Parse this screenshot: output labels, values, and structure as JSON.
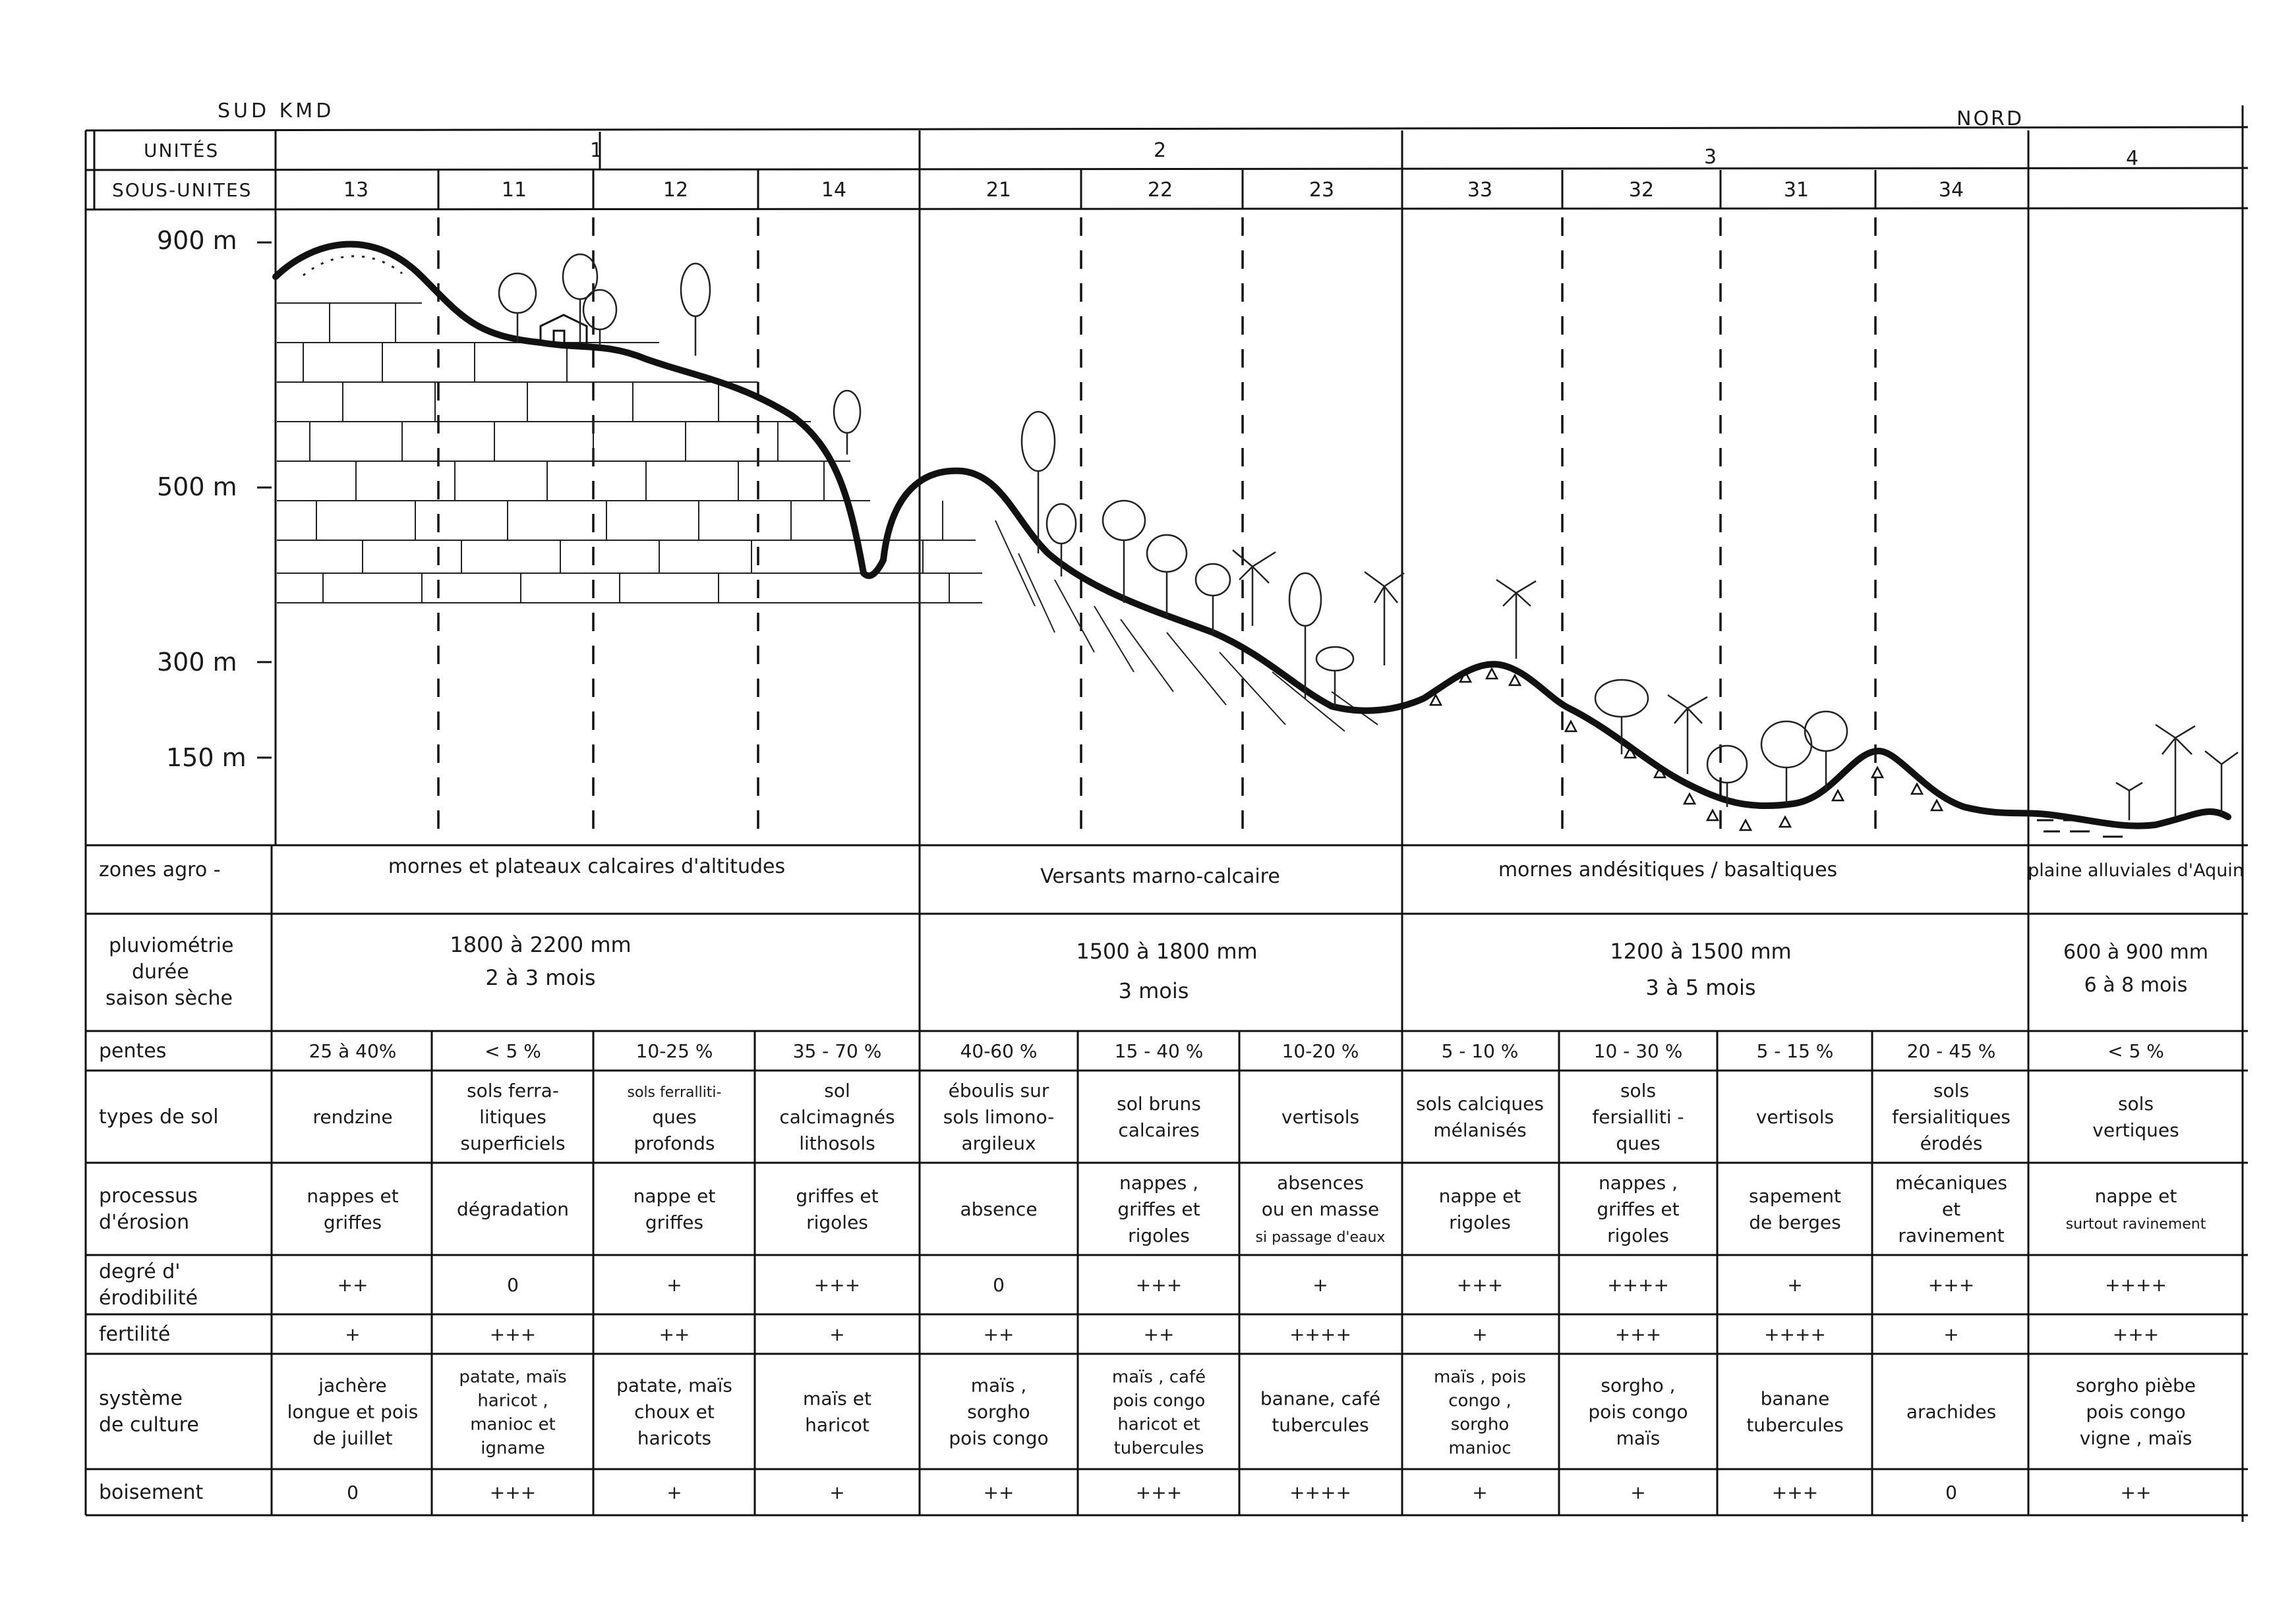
{
  "corners": {
    "left": "SUD KMD",
    "right": "NORD"
  },
  "header": {
    "unites_label": "UNITÉS",
    "sous_unites_label": "SOUS-UNITES",
    "unites": [
      "1",
      "2",
      "3",
      "4"
    ],
    "sous_unites": [
      "13",
      "11",
      "12",
      "14",
      "21",
      "22",
      "23",
      "33",
      "32",
      "31",
      "34"
    ]
  },
  "altitudes": [
    "900 m",
    "500 m",
    "300 m",
    "150 m"
  ],
  "zones": {
    "label": "zones agro -",
    "values": [
      "mornes et plateaux calcaires d'altitudes",
      "Versants marno-calcaire",
      "mornes andésitiques / basaltiques",
      "plaine alluviales d'Aquin"
    ]
  },
  "pluvio": {
    "label_lines": [
      "pluviométrie",
      "durée",
      "saison sèche"
    ],
    "values": [
      [
        "1800 à 2200 mm",
        "2 à 3 mois"
      ],
      [
        "1500 à 1800 mm",
        "3 mois"
      ],
      [
        "1200 à 1500 mm",
        "3 à 5 mois"
      ],
      [
        "600 à 900 mm",
        "6 à 8 mois"
      ]
    ]
  },
  "rows": [
    {
      "label": [
        "pentes"
      ],
      "cells": [
        [
          "25 à 40%"
        ],
        [
          "< 5 %"
        ],
        [
          "10-25 %"
        ],
        [
          "35 - 70 %"
        ],
        [
          "40-60 %"
        ],
        [
          "15 - 40 %"
        ],
        [
          "10-20 %"
        ],
        [
          "5 - 10 %"
        ],
        [
          "10 - 30 %"
        ],
        [
          "5 - 15 %"
        ],
        [
          "20 - 45 %"
        ],
        [
          "< 5 %"
        ]
      ]
    },
    {
      "label": [
        "types de sol"
      ],
      "cells": [
        [
          "rendzine"
        ],
        [
          "sols ferra-",
          "litiques",
          "superficiels"
        ],
        [
          "sols ferralliti-",
          "ques",
          "profonds"
        ],
        [
          "sol",
          "calcimagnés",
          "lithosols"
        ],
        [
          "éboulis sur",
          "sols limono-",
          "argileux"
        ],
        [
          "sol bruns",
          "calcaires"
        ],
        [
          "vertisols"
        ],
        [
          "sols calciques",
          "mélanisés"
        ],
        [
          "sols",
          "fersialliti -",
          "ques"
        ],
        [
          "vertisols"
        ],
        [
          "sols",
          "fersialitiques",
          "érodés"
        ],
        [
          "sols",
          "vertiques"
        ]
      ]
    },
    {
      "label": [
        "processus",
        "d'érosion"
      ],
      "cells": [
        [
          "nappes et",
          "griffes"
        ],
        [
          "dégradation"
        ],
        [
          "nappe et",
          "griffes"
        ],
        [
          "griffes et",
          "rigoles"
        ],
        [
          "absence"
        ],
        [
          "nappes ,",
          "griffes et",
          "rigoles"
        ],
        [
          "absences",
          "ou en masse",
          "si passage d'eaux"
        ],
        [
          "nappe et",
          "rigoles"
        ],
        [
          "nappes ,",
          "griffes et",
          "rigoles"
        ],
        [
          "sapement",
          "de berges"
        ],
        [
          "mécaniques",
          "et",
          "ravinement"
        ],
        [
          "nappe et",
          "surtout ravinement"
        ]
      ]
    },
    {
      "label": [
        "degré d'",
        "érodibilité"
      ],
      "cells": [
        [
          "++"
        ],
        [
          "0"
        ],
        [
          "+"
        ],
        [
          "+++"
        ],
        [
          "0"
        ],
        [
          "+++"
        ],
        [
          "+"
        ],
        [
          "+++"
        ],
        [
          "++++"
        ],
        [
          "+"
        ],
        [
          "+++"
        ],
        [
          "++++"
        ]
      ]
    },
    {
      "label": [
        "fertilité"
      ],
      "cells": [
        [
          "+"
        ],
        [
          "+++"
        ],
        [
          "++"
        ],
        [
          "+"
        ],
        [
          "++"
        ],
        [
          "++"
        ],
        [
          "++++"
        ],
        [
          "+"
        ],
        [
          "+++"
        ],
        [
          "++++"
        ],
        [
          "+"
        ],
        [
          "+++"
        ]
      ]
    },
    {
      "label": [
        "système",
        "de culture"
      ],
      "cells": [
        [
          "jachère",
          "longue et pois",
          "de juillet"
        ],
        [
          "patate, maïs",
          "haricot ,",
          "manioc et",
          "igname"
        ],
        [
          "patate, maïs",
          "choux et",
          "haricots"
        ],
        [
          "maïs et",
          "haricot"
        ],
        [
          "maïs ,",
          "sorgho",
          "pois congo"
        ],
        [
          "maïs , café",
          "pois congo",
          "haricot et",
          "tubercules"
        ],
        [
          "banane, café",
          "tubercules"
        ],
        [
          "maïs , pois",
          "congo ,",
          "sorgho",
          "manioc"
        ],
        [
          "sorgho ,",
          "pois congo",
          "maïs"
        ],
        [
          "banane",
          "tubercules"
        ],
        [
          "arachides"
        ],
        [
          "sorgho pièbe",
          "pois congo",
          "vigne , maïs"
        ]
      ]
    },
    {
      "label": [
        "boisement"
      ],
      "cells": [
        [
          "0"
        ],
        [
          "+++"
        ],
        [
          "+"
        ],
        [
          "+"
        ],
        [
          "++"
        ],
        [
          "+++"
        ],
        [
          "++++"
        ],
        [
          "+"
        ],
        [
          "+"
        ],
        [
          "+++"
        ],
        [
          "0"
        ],
        [
          "++"
        ]
      ]
    }
  ]
}
